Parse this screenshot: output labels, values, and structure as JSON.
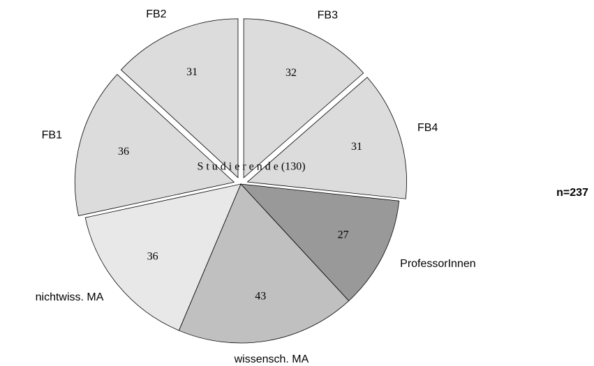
{
  "chart_data": {
    "type": "pie",
    "categories": [
      "FB3",
      "FB4",
      "ProfessorInnen",
      "wissensch. MA",
      "nichtwiss. MA",
      "FB1",
      "FB2"
    ],
    "values": [
      32,
      31,
      27,
      43,
      36,
      36,
      31
    ],
    "colors": [
      "#dcdcdc",
      "#dcdcdc",
      "#999999",
      "#c0c0c0",
      "#e8e8e8",
      "#dcdcdc",
      "#dcdcdc"
    ],
    "annotations": [
      "S t u d i e r e n d e (130)",
      "n=237"
    ]
  }
}
